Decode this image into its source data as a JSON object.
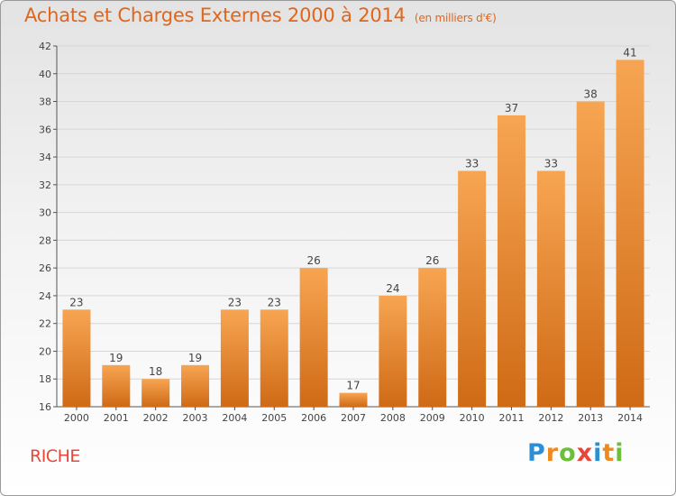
{
  "header": {
    "title": "Achats et Charges Externes 2000 à 2014",
    "subtitle": "(en milliers d'€)"
  },
  "footer": {
    "commune": "RICHE",
    "logo": {
      "letters": [
        "P",
        "r",
        "o",
        "x",
        "i",
        "t",
        "i"
      ],
      "colors": [
        "#2c8fd6",
        "#f08a1c",
        "#6cbf3b",
        "#e8463a",
        "#2c8fd6",
        "#f08a1c",
        "#6cbf3b"
      ]
    }
  },
  "colors": {
    "bar_top": "#f7a552",
    "bar_bottom": "#cf6a16",
    "title": "#e0661b"
  },
  "chart_data": {
    "type": "bar",
    "title": "Achats et Charges Externes 2000 à 2014",
    "subtitle": "(en milliers d'€)",
    "categories": [
      "2000",
      "2001",
      "2002",
      "2003",
      "2004",
      "2005",
      "2006",
      "2007",
      "2008",
      "2009",
      "2010",
      "2011",
      "2012",
      "2013",
      "2014"
    ],
    "values": [
      23,
      19,
      18,
      19,
      23,
      23,
      26,
      17,
      24,
      26,
      33,
      37,
      33,
      38,
      41
    ],
    "ylim": [
      16,
      42
    ],
    "yticks": [
      16,
      18,
      20,
      22,
      24,
      26,
      28,
      30,
      32,
      34,
      36,
      38,
      40,
      42
    ],
    "grid": true,
    "xlabel": "",
    "ylabel": ""
  }
}
